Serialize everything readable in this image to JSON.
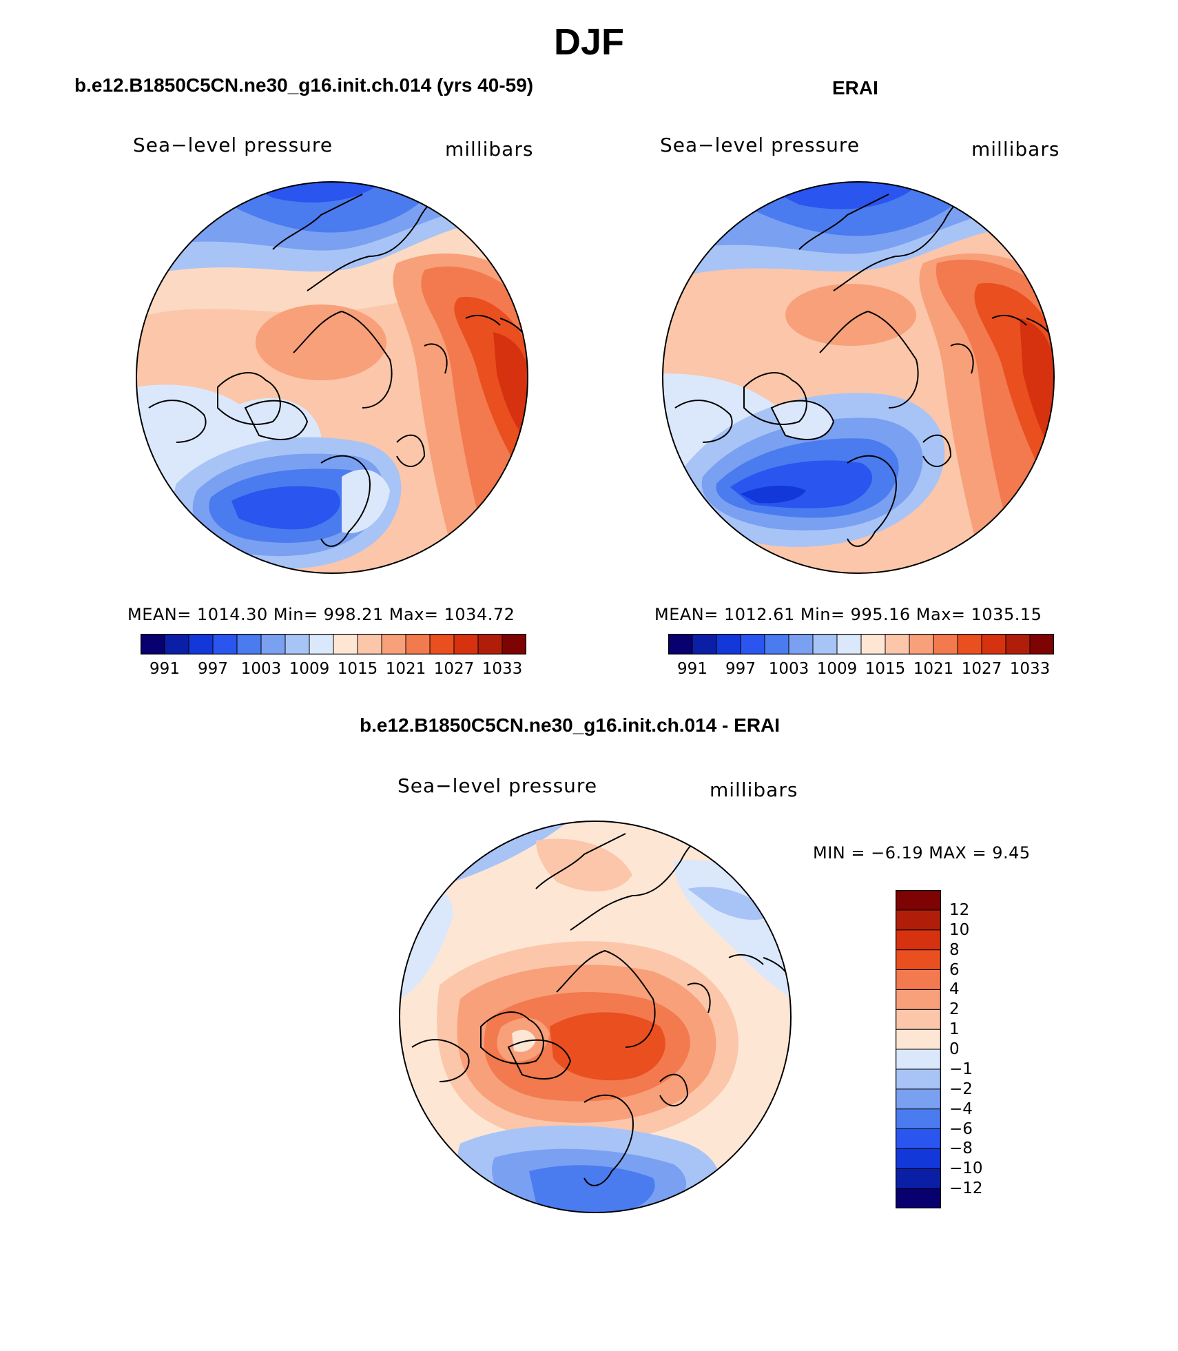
{
  "title": "DJF",
  "top_left": {
    "title": "b.e12.B1850C5CN.ne30_g16.init.ch.014 (yrs 40-59)",
    "variable": "Sea−level pressure",
    "units": "millibars",
    "stats": "MEAN=  1014.30    Min=  998.21    Max=  1034.72"
  },
  "top_right": {
    "title": "ERAI",
    "variable": "Sea−level pressure",
    "units": "millibars",
    "stats": "MEAN=  1012.61    Min=  995.16    Max=  1035.15"
  },
  "bottom": {
    "title": "b.e12.B1850C5CN.ne30_g16.init.ch.014 - ERAI",
    "variable": "Sea−level pressure",
    "units": "millibars",
    "stats": "MIN =    −6.19  MAX =     9.45"
  },
  "colorbar_full": {
    "colors": [
      "#08006e",
      "#0a1fa6",
      "#1238d9",
      "#2a55ee",
      "#4a7bef",
      "#7aa0f2",
      "#a8c4f6",
      "#dbe8fb",
      "#fde6d4",
      "#fbc6a9",
      "#f7a07a",
      "#f27a4e",
      "#ea4f1f",
      "#d7320f",
      "#b01e09",
      "#7e0303"
    ],
    "labels": [
      "991",
      "997",
      "1003",
      "1009",
      "1015",
      "1021",
      "1027",
      "1033"
    ]
  },
  "colorbar_diff": {
    "colors": [
      "#08006e",
      "#0a1fa6",
      "#1238d9",
      "#2a55ee",
      "#4a7bef",
      "#7aa0f2",
      "#a8c4f6",
      "#dbe8fb",
      "#fde6d4",
      "#fbc6a9",
      "#f7a07a",
      "#f27a4e",
      "#ea4f1f",
      "#d7320f",
      "#b01e09",
      "#7e0303"
    ],
    "labels": [
      "12",
      "10",
      "8",
      "6",
      "4",
      "2",
      "1",
      "0",
      "−1",
      "−2",
      "−4",
      "−6",
      "−8",
      "−10",
      "−12"
    ]
  }
}
